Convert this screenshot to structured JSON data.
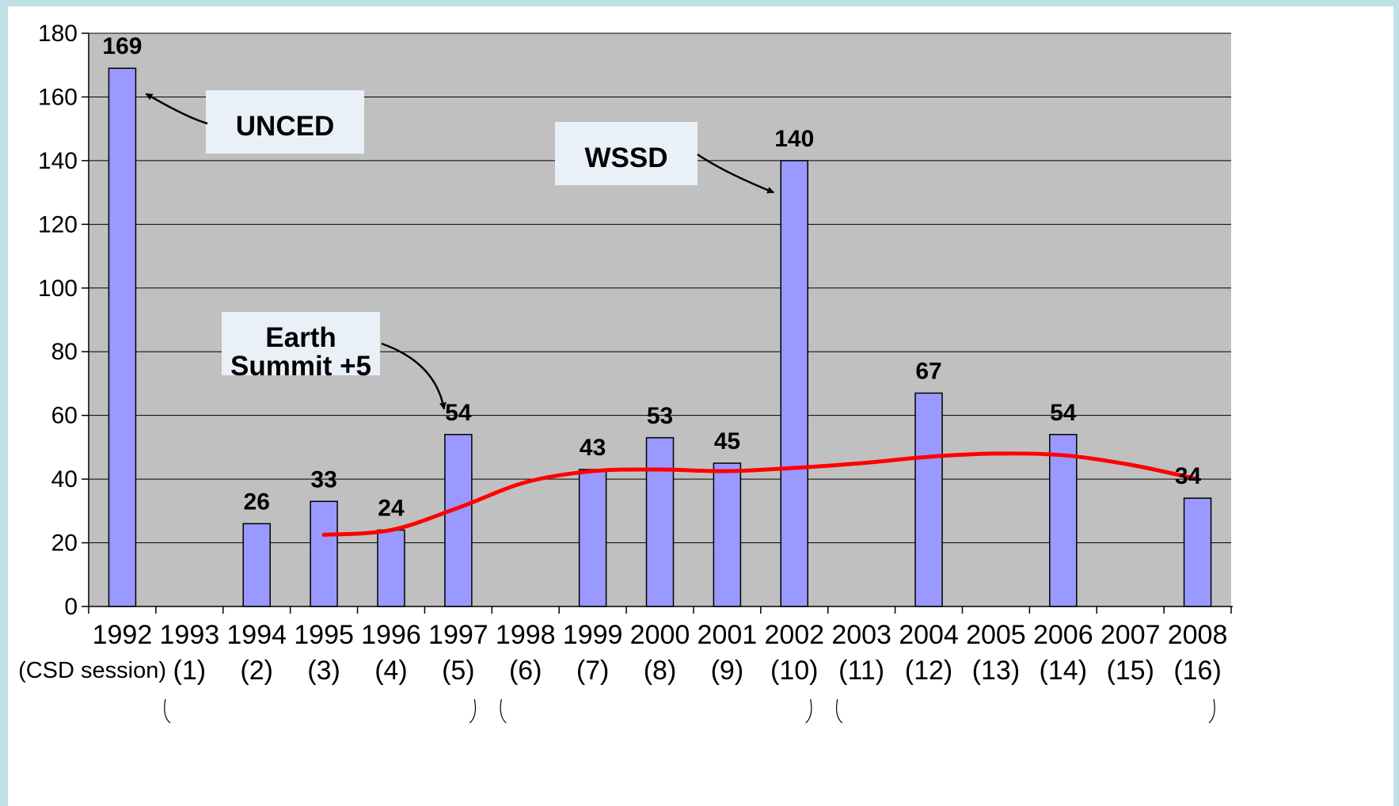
{
  "chart_data": {
    "type": "bar",
    "categories": [
      "1992",
      "1993",
      "1994",
      "1995",
      "1996",
      "1997",
      "1998",
      "1999",
      "2000",
      "2001",
      "2002",
      "2003",
      "2004",
      "2005",
      "2006",
      "2007",
      "2008"
    ],
    "values": [
      169,
      null,
      26,
      33,
      24,
      54,
      null,
      43,
      53,
      45,
      140,
      null,
      67,
      null,
      54,
      null,
      34
    ],
    "data_labels": [
      "169",
      "",
      "26",
      "33",
      "24",
      "54",
      "",
      "43",
      "53",
      "45",
      "140",
      "",
      "67",
      "",
      "54",
      "",
      "34"
    ],
    "session_title": "(CSD session)",
    "sessions": [
      "",
      "(1)",
      "(2)",
      "(3)",
      "(4)",
      "(5)",
      "(6)",
      "(7)",
      "(8)",
      "(9)",
      "(10)",
      "(11)",
      "(12)",
      "(13)",
      "(14)",
      "(15)",
      "(16)"
    ],
    "ylim": [
      0,
      180
    ],
    "yticks": [
      0,
      20,
      40,
      60,
      80,
      100,
      120,
      140,
      160,
      180
    ],
    "ytick_labels": [
      "0",
      "20",
      "40",
      "60",
      "80",
      "100",
      "120",
      "140",
      "160",
      "180"
    ],
    "grid": true,
    "colors": {
      "bar": "#9999ff",
      "bar_outline": "#000000",
      "plot_background": "#c0c0c0",
      "trend": "#ff0000",
      "annotation_box": "#eaf0f8"
    },
    "trend_line": {
      "x": [
        "1995",
        "1996",
        "1997",
        "1998",
        "1999",
        "2000",
        "2001",
        "2002",
        "2003",
        "2004",
        "2005",
        "2006",
        "2007",
        "2008"
      ],
      "y": [
        22.5,
        24,
        31,
        39,
        42.5,
        43,
        42.5,
        43.5,
        45,
        47,
        48,
        47.5,
        44.5,
        40
      ]
    },
    "annotations": [
      {
        "lines": [
          "UNCED"
        ],
        "points_to": "1992"
      },
      {
        "lines": [
          "WSSD"
        ],
        "points_to": "2002"
      },
      {
        "lines": [
          "Earth",
          "Summit +5"
        ],
        "points_to": "1997"
      }
    ],
    "period_braces": [
      {
        "from": "1993",
        "to": "1997"
      },
      {
        "from": "1998",
        "to": "2002"
      },
      {
        "from": "2003",
        "to": "2008"
      }
    ]
  }
}
